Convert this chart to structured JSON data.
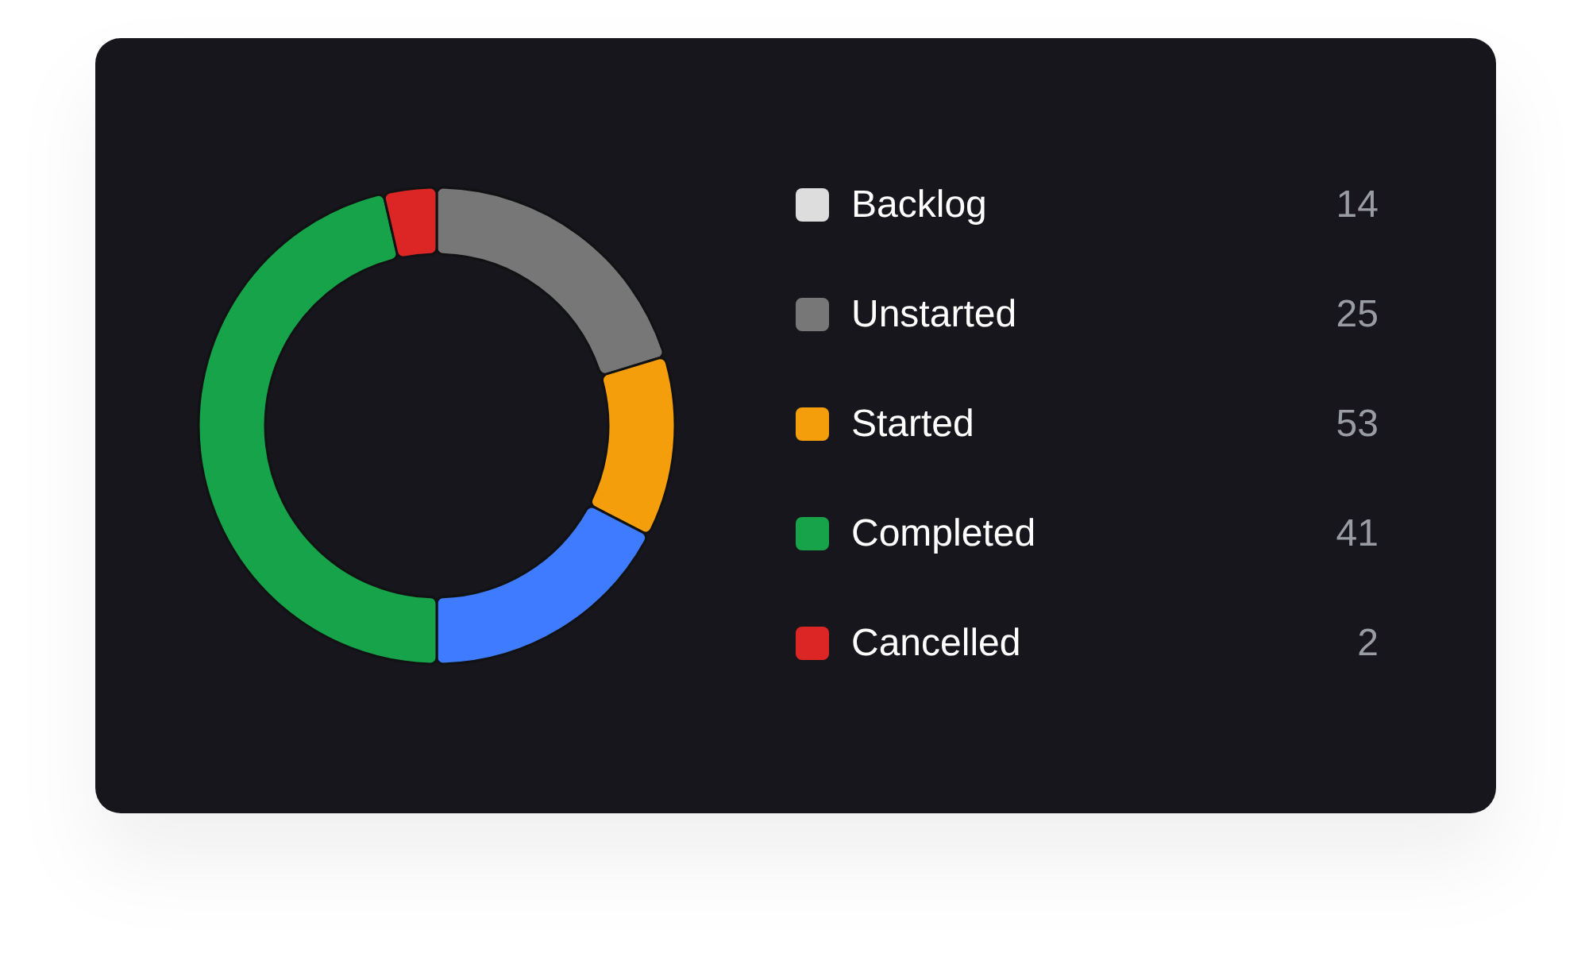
{
  "chart_data": [
    {
      "type": "donut",
      "categories": [
        null,
        null,
        null,
        null,
        null
      ],
      "values": [
        20.3,
        12.3,
        17.4,
        46.4,
        3.6
      ],
      "colors": [
        "#777777",
        "#f59e0b",
        "#3f7bff",
        "#16a34a",
        "#dc2626"
      ]
    },
    {
      "type": "other",
      "categories": [
        "Backlog",
        "Unstarted",
        "Started",
        "Completed",
        "Cancelled"
      ],
      "values": [
        14,
        25,
        53,
        41,
        2
      ],
      "colors": [
        "#dddddd",
        "#777777",
        "#f59e0b",
        "#16a34a",
        "#dc2626"
      ],
      "data_labels": true
    }
  ]
}
